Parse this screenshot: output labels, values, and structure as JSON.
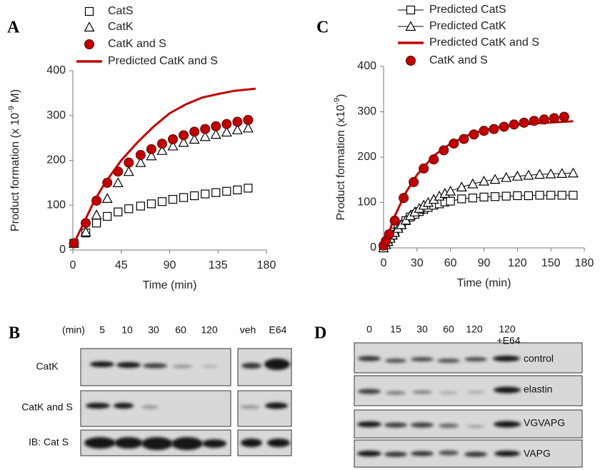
{
  "chart_data": [
    {
      "type": "line",
      "panel": "A",
      "xlabel": "Time (min)",
      "ylabel": "Product formation (x 10",
      "ylabel_sup": "-9",
      "ylabel_end": " M)",
      "xlim": [
        0,
        180
      ],
      "xticks": [
        0,
        45,
        90,
        135,
        180
      ],
      "ylim": [
        0,
        400
      ],
      "yticks": [
        0,
        100,
        200,
        300,
        400
      ],
      "grid": false,
      "legend": "top",
      "series": [
        {
          "name": "CatS",
          "marker": "square",
          "line": false,
          "color": "#000000",
          "x": [
            1,
            12,
            22,
            32,
            42,
            52,
            63,
            73,
            83,
            93,
            103,
            113,
            123,
            133,
            143,
            153,
            163
          ],
          "values": [
            15,
            38,
            60,
            75,
            85,
            92,
            98,
            103,
            108,
            113,
            117,
            121,
            125,
            128,
            131,
            134,
            138
          ]
        },
        {
          "name": "CatK",
          "marker": "triangle",
          "line": false,
          "color": "#000000",
          "x": [
            1,
            12,
            22,
            32,
            42,
            52,
            63,
            73,
            83,
            93,
            103,
            113,
            123,
            133,
            143,
            153,
            163
          ],
          "values": [
            15,
            40,
            78,
            115,
            150,
            175,
            195,
            210,
            222,
            232,
            240,
            247,
            253,
            258,
            263,
            268,
            272
          ]
        },
        {
          "name": "CatK and S",
          "marker": "circle",
          "line": false,
          "color": "#c00000",
          "x": [
            1,
            12,
            22,
            32,
            42,
            52,
            63,
            73,
            83,
            93,
            103,
            113,
            123,
            133,
            143,
            153,
            163
          ],
          "values": [
            15,
            60,
            110,
            150,
            175,
            195,
            212,
            225,
            237,
            247,
            256,
            264,
            270,
            276,
            281,
            286,
            290
          ]
        },
        {
          "name": "Predicted CatK and S",
          "marker": "none",
          "line": true,
          "color": "#c00000",
          "x": [
            0,
            10,
            20,
            30,
            45,
            60,
            75,
            90,
            105,
            120,
            135,
            150,
            170
          ],
          "values": [
            10,
            60,
            110,
            150,
            200,
            240,
            275,
            305,
            325,
            340,
            348,
            355,
            360
          ]
        }
      ]
    },
    {
      "type": "line",
      "panel": "C",
      "xlabel": "Time (min)",
      "ylabel": "Product formation (x10",
      "ylabel_sup": "-9",
      "ylabel_end": ")",
      "xlim": [
        0,
        180
      ],
      "xticks": [
        0,
        30,
        60,
        90,
        120,
        150,
        180
      ],
      "ylim": [
        0,
        400
      ],
      "yticks": [
        0,
        100,
        200,
        300,
        400
      ],
      "grid": false,
      "legend": "top",
      "series": [
        {
          "name": "Predicted CatS",
          "marker": "square",
          "line": true,
          "color": "#000000",
          "x": [
            0,
            2,
            4,
            6,
            8,
            10,
            13,
            16,
            20,
            24,
            28,
            32,
            36,
            40,
            45,
            50,
            55,
            60,
            70,
            80,
            90,
            100,
            110,
            120,
            130,
            140,
            150,
            160,
            170
          ],
          "values": [
            0,
            8,
            16,
            23,
            29,
            35,
            44,
            51,
            60,
            68,
            74,
            80,
            85,
            89,
            94,
            97,
            101,
            103,
            108,
            110,
            112,
            113,
            114,
            115,
            115,
            116,
            116,
            116,
            116
          ]
        },
        {
          "name": "Predicted CatK",
          "marker": "triangle",
          "line": true,
          "color": "#000000",
          "x": [
            0,
            2,
            4,
            6,
            8,
            10,
            13,
            16,
            20,
            24,
            28,
            32,
            36,
            40,
            45,
            50,
            55,
            60,
            70,
            80,
            90,
            100,
            110,
            120,
            130,
            140,
            150,
            160,
            170
          ],
          "values": [
            0,
            7,
            14,
            21,
            28,
            34,
            43,
            51,
            61,
            71,
            79,
            87,
            94,
            100,
            107,
            114,
            120,
            125,
            134,
            141,
            147,
            151,
            155,
            158,
            160,
            162,
            163,
            164,
            165
          ]
        },
        {
          "name": "Predicted CatK and S",
          "marker": "none",
          "line": true,
          "color": "#c00000",
          "x": [
            0,
            10,
            20,
            30,
            45,
            60,
            80,
            100,
            120,
            140,
            170
          ],
          "values": [
            0,
            70,
            122,
            161,
            203,
            230,
            253,
            265,
            271,
            275,
            279
          ]
        },
        {
          "name": "CatK and S",
          "marker": "circle",
          "line": false,
          "color": "#c00000",
          "x": [
            0,
            2,
            5,
            10,
            18,
            27,
            36,
            45,
            54,
            63,
            72,
            81,
            90,
            99,
            108,
            117,
            126,
            135,
            144,
            153,
            162
          ],
          "values": [
            5,
            15,
            30,
            60,
            110,
            145,
            175,
            195,
            215,
            230,
            240,
            250,
            258,
            262,
            267,
            272,
            276,
            280,
            283,
            286,
            289
          ]
        }
      ]
    }
  ],
  "blots": [
    {
      "panel": "B",
      "unit": "(min)",
      "columns": [
        "5",
        "10",
        "30",
        "60",
        "120"
      ],
      "extra_columns": [
        "veh",
        "E64"
      ],
      "rows": [
        "CatK",
        "CatK and S",
        "IB: Cat S"
      ]
    },
    {
      "panel": "D",
      "columns": [
        "0",
        "15",
        "30",
        "60",
        "120",
        "120"
      ],
      "column_note": "+E64",
      "rows": [
        "control",
        "elastin",
        "VGVAPG",
        "VAPG"
      ]
    }
  ]
}
